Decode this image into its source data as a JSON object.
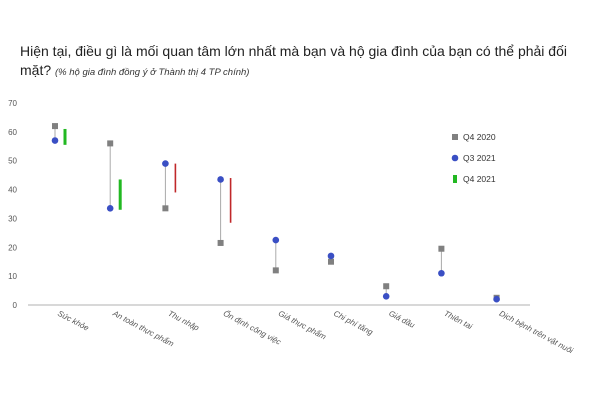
{
  "title": {
    "main": "Hiện tại, điều gì là mối quan tâm lớn nhất mà bạn và hộ gia đình của bạn có thể phải đối mặt?",
    "subtitle": "(% hộ gia đình đồng ý ở Thành thị 4 TP chính)"
  },
  "chart_data": {
    "type": "scatter",
    "title": "Hiện tại, điều gì là mối quan tâm lớn nhất mà bạn và hộ gia đình của bạn có thể phải đối mặt?",
    "subtitle": "(% hộ gia đình đồng ý ở Thành thị 4 TP chính)",
    "categories": [
      "Sức khỏe",
      "An toàn thực phẩm",
      "Thu nhập",
      "Ổn định công việc",
      "Giá thực phẩm",
      "Chi phí tăng",
      "Giá dầu",
      "Thiên tai",
      "Dịch bệnh trên vật nuôi"
    ],
    "ylim": [
      0,
      70
    ],
    "yticks": [
      0,
      10,
      20,
      30,
      40,
      50,
      60,
      70
    ],
    "grid": false,
    "legend_position": "right",
    "series": [
      {
        "name": "Q4 2020",
        "marker": "square",
        "color": "#808080",
        "values": [
          62,
          56,
          33.5,
          21.5,
          12,
          15,
          6.5,
          19.5,
          2.5
        ]
      },
      {
        "name": "Q3 2021",
        "marker": "circle",
        "color": "#3a4fc4",
        "values": [
          57,
          33.5,
          49,
          43.5,
          22.5,
          17,
          3,
          11,
          2
        ]
      },
      {
        "name": "Q4 2021",
        "marker": "bar-segment",
        "up_color": "#22b822",
        "down_color": "#c0282a",
        "ranges": [
          [
            55.5,
            61
          ],
          [
            33,
            43.5
          ],
          [
            39,
            49
          ],
          [
            28.5,
            44
          ],
          null,
          null,
          null,
          null,
          null
        ]
      }
    ]
  }
}
